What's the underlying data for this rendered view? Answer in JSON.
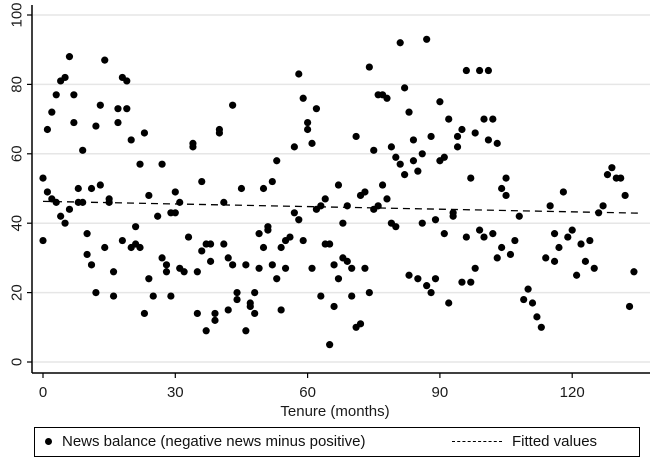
{
  "chart_data": {
    "type": "scatter",
    "title": "",
    "xlabel": "Tenure (months)",
    "ylabel": "",
    "xlim": [
      -2,
      135
    ],
    "ylim": [
      0,
      100
    ],
    "xticks": [
      0,
      30,
      60,
      90,
      120
    ],
    "yticks": [
      0,
      20,
      40,
      60,
      80,
      100
    ],
    "grid": true,
    "legend_position": "bottom",
    "legend": [
      "News balance (negative news minus positive)",
      "Fitted values"
    ],
    "series": [
      {
        "name": "News balance (negative news minus positive)",
        "type": "scatter",
        "marker": "filled-circle",
        "color": "#000000",
        "points": [
          [
            0,
            53
          ],
          [
            0,
            35
          ],
          [
            1,
            49
          ],
          [
            1,
            67
          ],
          [
            2,
            72
          ],
          [
            2,
            47
          ],
          [
            3,
            46
          ],
          [
            3,
            77
          ],
          [
            4,
            42
          ],
          [
            4,
            81
          ],
          [
            5,
            82
          ],
          [
            5,
            40
          ],
          [
            6,
            88
          ],
          [
            6,
            44
          ],
          [
            7,
            77
          ],
          [
            7,
            69
          ],
          [
            8,
            50
          ],
          [
            8,
            46
          ],
          [
            9,
            61
          ],
          [
            9,
            46
          ],
          [
            10,
            37
          ],
          [
            10,
            31
          ],
          [
            11,
            50
          ],
          [
            11,
            28
          ],
          [
            12,
            68
          ],
          [
            12,
            20
          ],
          [
            13,
            74
          ],
          [
            13,
            51
          ],
          [
            14,
            87
          ],
          [
            14,
            33
          ],
          [
            15,
            47
          ],
          [
            15,
            46
          ],
          [
            16,
            26
          ],
          [
            16,
            19
          ],
          [
            17,
            73
          ],
          [
            17,
            69
          ],
          [
            18,
            82
          ],
          [
            18,
            35
          ],
          [
            19,
            81
          ],
          [
            19,
            73
          ],
          [
            20,
            64
          ],
          [
            20,
            33
          ],
          [
            21,
            34
          ],
          [
            21,
            39
          ],
          [
            22,
            57
          ],
          [
            22,
            33
          ],
          [
            23,
            66
          ],
          [
            23,
            14
          ],
          [
            24,
            48
          ],
          [
            24,
            24
          ],
          [
            25,
            19
          ],
          [
            26,
            42
          ],
          [
            27,
            57
          ],
          [
            27,
            30
          ],
          [
            28,
            26
          ],
          [
            28,
            28
          ],
          [
            29,
            43
          ],
          [
            29,
            19
          ],
          [
            30,
            43
          ],
          [
            30,
            49
          ],
          [
            31,
            46
          ],
          [
            31,
            27
          ],
          [
            32,
            26
          ],
          [
            33,
            36
          ],
          [
            34,
            62
          ],
          [
            34,
            63
          ],
          [
            35,
            26
          ],
          [
            35,
            14
          ],
          [
            36,
            52
          ],
          [
            36,
            32
          ],
          [
            37,
            9
          ],
          [
            37,
            34
          ],
          [
            38,
            34
          ],
          [
            38,
            29
          ],
          [
            39,
            14
          ],
          [
            39,
            12
          ],
          [
            40,
            67
          ],
          [
            40,
            66
          ],
          [
            41,
            46
          ],
          [
            41,
            34
          ],
          [
            42,
            30
          ],
          [
            42,
            15
          ],
          [
            43,
            74
          ],
          [
            43,
            28
          ],
          [
            44,
            20
          ],
          [
            44,
            18
          ],
          [
            45,
            50
          ],
          [
            46,
            28
          ],
          [
            46,
            9
          ],
          [
            47,
            17
          ],
          [
            47,
            16
          ],
          [
            48,
            14
          ],
          [
            48,
            20
          ],
          [
            49,
            37
          ],
          [
            49,
            27
          ],
          [
            50,
            50
          ],
          [
            50,
            33
          ],
          [
            51,
            39
          ],
          [
            51,
            38
          ],
          [
            52,
            52
          ],
          [
            52,
            28
          ],
          [
            53,
            58
          ],
          [
            53,
            24
          ],
          [
            54,
            33
          ],
          [
            54,
            15
          ],
          [
            55,
            27
          ],
          [
            55,
            35
          ],
          [
            56,
            36
          ],
          [
            57,
            62
          ],
          [
            57,
            43
          ],
          [
            58,
            83
          ],
          [
            58,
            41
          ],
          [
            59,
            76
          ],
          [
            59,
            35
          ],
          [
            60,
            69
          ],
          [
            60,
            67
          ],
          [
            61,
            63
          ],
          [
            61,
            27
          ],
          [
            62,
            73
          ],
          [
            62,
            44
          ],
          [
            63,
            45
          ],
          [
            63,
            19
          ],
          [
            64,
            47
          ],
          [
            64,
            34
          ],
          [
            65,
            5
          ],
          [
            65,
            34
          ],
          [
            66,
            16
          ],
          [
            66,
            28
          ],
          [
            67,
            51
          ],
          [
            67,
            24
          ],
          [
            68,
            40
          ],
          [
            68,
            30
          ],
          [
            69,
            45
          ],
          [
            69,
            29
          ],
          [
            70,
            27
          ],
          [
            70,
            19
          ],
          [
            71,
            65
          ],
          [
            71,
            10
          ],
          [
            72,
            11
          ],
          [
            72,
            48
          ],
          [
            73,
            49
          ],
          [
            73,
            27
          ],
          [
            74,
            85
          ],
          [
            74,
            20
          ],
          [
            75,
            61
          ],
          [
            75,
            44
          ],
          [
            76,
            77
          ],
          [
            76,
            45
          ],
          [
            77,
            77
          ],
          [
            77,
            51
          ],
          [
            78,
            76
          ],
          [
            78,
            47
          ],
          [
            79,
            62
          ],
          [
            79,
            40
          ],
          [
            80,
            39
          ],
          [
            80,
            59
          ],
          [
            81,
            92
          ],
          [
            81,
            57
          ],
          [
            82,
            79
          ],
          [
            82,
            54
          ],
          [
            83,
            72
          ],
          [
            83,
            25
          ],
          [
            84,
            64
          ],
          [
            84,
            58
          ],
          [
            85,
            55
          ],
          [
            85,
            24
          ],
          [
            86,
            60
          ],
          [
            86,
            40
          ],
          [
            87,
            93
          ],
          [
            87,
            22
          ],
          [
            88,
            65
          ],
          [
            88,
            20
          ],
          [
            89,
            41
          ],
          [
            89,
            24
          ],
          [
            90,
            75
          ],
          [
            90,
            58
          ],
          [
            91,
            59
          ],
          [
            91,
            37
          ],
          [
            92,
            70
          ],
          [
            92,
            17
          ],
          [
            93,
            43
          ],
          [
            93,
            42
          ],
          [
            94,
            62
          ],
          [
            94,
            65
          ],
          [
            95,
            67
          ],
          [
            95,
            23
          ],
          [
            96,
            84
          ],
          [
            96,
            36
          ],
          [
            97,
            53
          ],
          [
            97,
            23
          ],
          [
            98,
            66
          ],
          [
            98,
            27
          ],
          [
            99,
            84
          ],
          [
            99,
            38
          ],
          [
            100,
            70
          ],
          [
            100,
            36
          ],
          [
            101,
            84
          ],
          [
            101,
            64
          ],
          [
            102,
            37
          ],
          [
            102,
            70
          ],
          [
            103,
            63
          ],
          [
            103,
            30
          ],
          [
            104,
            50
          ],
          [
            104,
            33
          ],
          [
            105,
            53
          ],
          [
            105,
            48
          ],
          [
            106,
            31
          ],
          [
            107,
            35
          ],
          [
            108,
            42
          ],
          [
            109,
            18
          ],
          [
            110,
            21
          ],
          [
            111,
            17
          ],
          [
            112,
            13
          ],
          [
            113,
            10
          ],
          [
            114,
            30
          ],
          [
            115,
            45
          ],
          [
            116,
            37
          ],
          [
            116,
            29
          ],
          [
            117,
            33
          ],
          [
            118,
            49
          ],
          [
            119,
            36
          ],
          [
            120,
            38
          ],
          [
            121,
            25
          ],
          [
            122,
            34
          ],
          [
            123,
            29
          ],
          [
            124,
            35
          ],
          [
            125,
            27
          ],
          [
            126,
            43
          ],
          [
            127,
            45
          ],
          [
            128,
            54
          ],
          [
            129,
            56
          ],
          [
            130,
            53
          ],
          [
            131,
            53
          ],
          [
            132,
            48
          ],
          [
            133,
            16
          ],
          [
            134,
            26
          ]
        ]
      },
      {
        "name": "Fitted values",
        "type": "line",
        "style": "dashed",
        "color": "#000000",
        "points": [
          [
            0,
            46.3
          ],
          [
            135,
            42.9
          ]
        ]
      }
    ]
  },
  "axes": {
    "xlabel": "Tenure (months)",
    "xticks": [
      "0",
      "30",
      "60",
      "90",
      "120"
    ],
    "yticks": [
      "0",
      "20",
      "40",
      "60",
      "80",
      "100"
    ]
  },
  "legend": {
    "items": [
      {
        "label": "News balance (negative news minus positive)",
        "marker": "dot"
      },
      {
        "label": "Fitted values",
        "marker": "dash"
      }
    ]
  }
}
